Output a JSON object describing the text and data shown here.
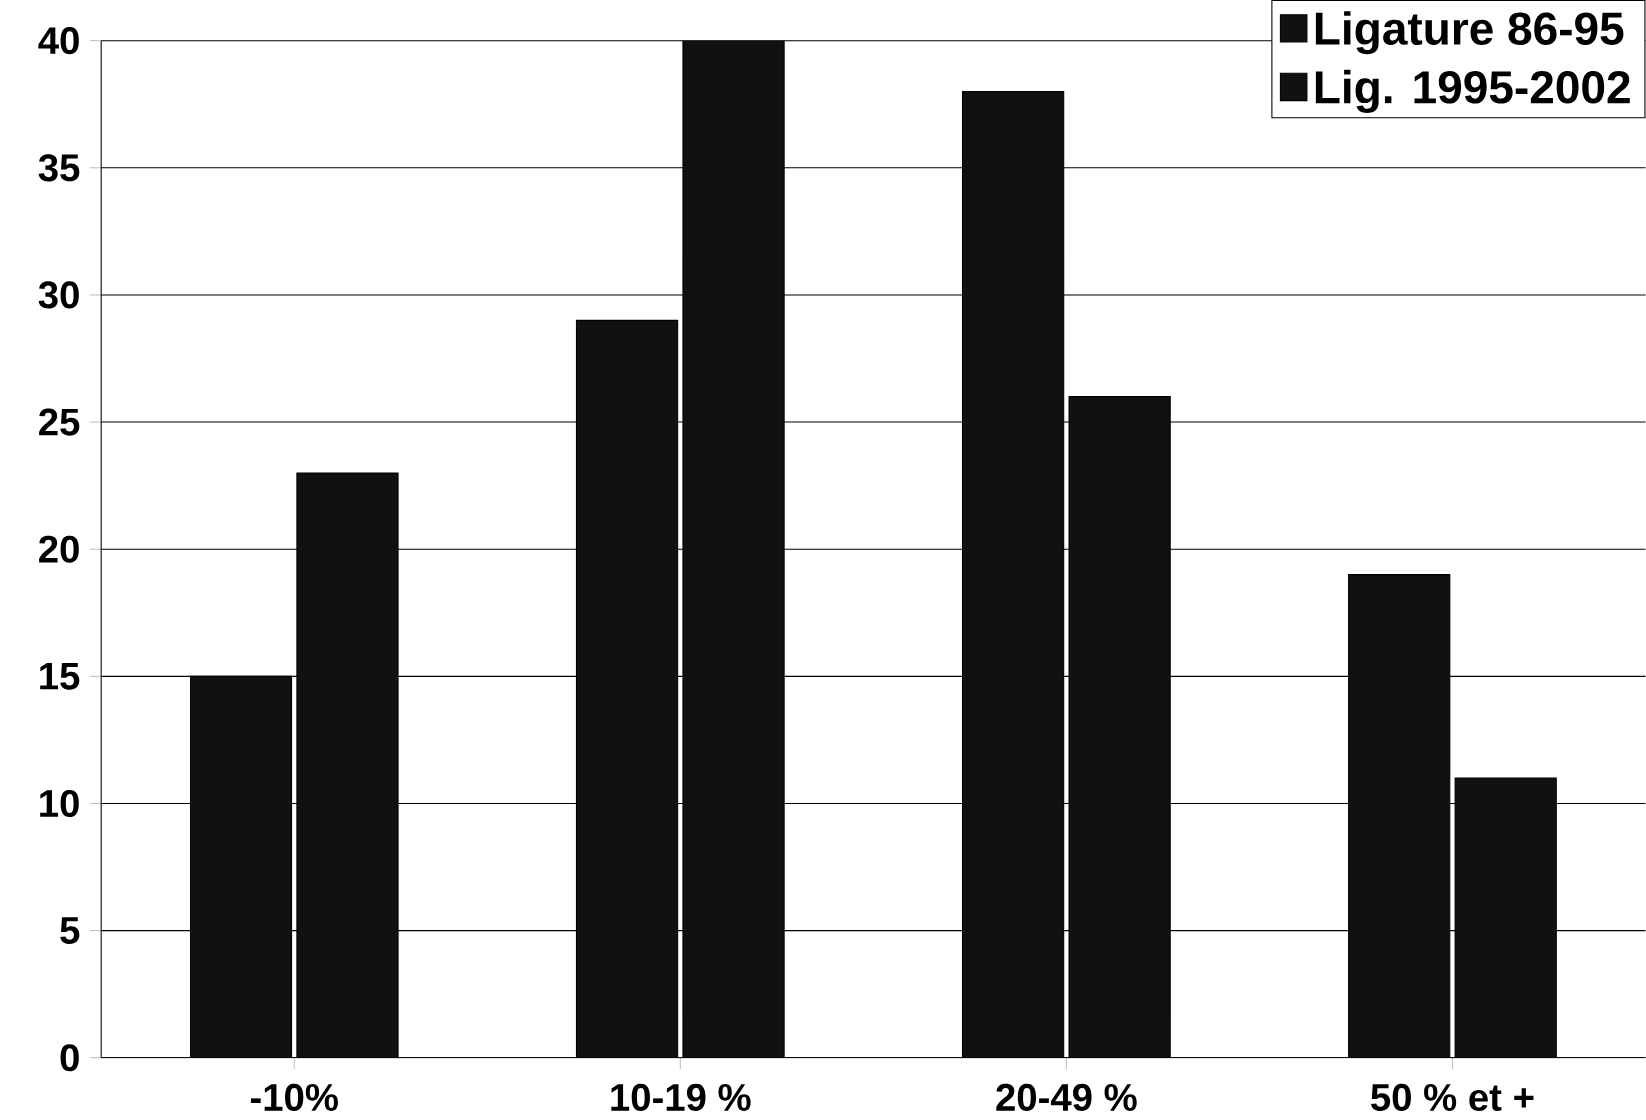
{
  "chart_data": {
    "type": "bar",
    "categories": [
      "-10%",
      "10-19 %",
      "20-49 %",
      "50 % et +"
    ],
    "series": [
      {
        "name": "Ligature 86-95",
        "color": "#111111",
        "values": [
          15,
          29,
          38,
          19
        ]
      },
      {
        "name": "Lig. 1995-2002",
        "color": "#111111",
        "values": [
          23,
          40,
          26,
          11
        ]
      }
    ],
    "ylim": [
      0,
      40
    ],
    "yticks": [
      0,
      5,
      10,
      15,
      20,
      25,
      30,
      35,
      40
    ],
    "grid": "y",
    "legend": "top right"
  }
}
